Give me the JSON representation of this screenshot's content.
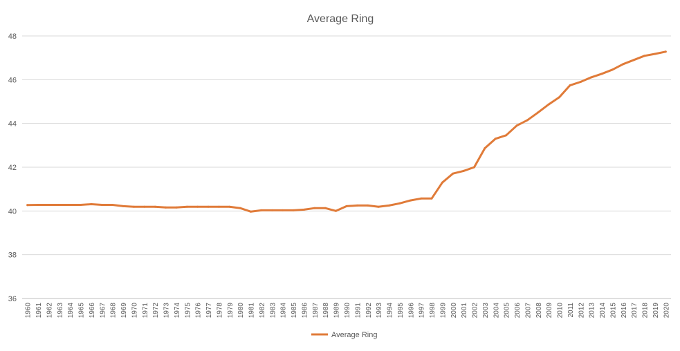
{
  "chart_data": {
    "type": "line",
    "title": "Average Ring",
    "xlabel": "",
    "ylabel": "",
    "ylim": [
      36,
      48
    ],
    "yticks": [
      36,
      38,
      40,
      42,
      44,
      46,
      48
    ],
    "grid": true,
    "legend_position": "bottom",
    "line_color": "#E07B39",
    "gridline_color": "#D9D9D9",
    "text_color": "#595959",
    "categories": [
      "1960",
      "1961",
      "1962",
      "1963",
      "1964",
      "1965",
      "1966",
      "1967",
      "1968",
      "1969",
      "1970",
      "1971",
      "1972",
      "1973",
      "1974",
      "1975",
      "1976",
      "1977",
      "1978",
      "1979",
      "1980",
      "1981",
      "1982",
      "1983",
      "1984",
      "1985",
      "1986",
      "1987",
      "1988",
      "1989",
      "1990",
      "1991",
      "1992",
      "1993",
      "1994",
      "1995",
      "1996",
      "1997",
      "1998",
      "1999",
      "2000",
      "2001",
      "2002",
      "2003",
      "2004",
      "2005",
      "2006",
      "2007",
      "2008",
      "2009",
      "2010",
      "2011",
      "2012",
      "2013",
      "2014",
      "2015",
      "2016",
      "2017",
      "2018",
      "2019",
      "2020"
    ],
    "series": [
      {
        "name": "Average Ring",
        "values": [
          40.27,
          40.28,
          40.28,
          40.28,
          40.28,
          40.28,
          40.31,
          40.28,
          40.28,
          40.22,
          40.19,
          40.19,
          40.19,
          40.16,
          40.16,
          40.19,
          40.19,
          40.19,
          40.19,
          40.19,
          40.13,
          39.97,
          40.03,
          40.03,
          40.03,
          40.03,
          40.06,
          40.13,
          40.13,
          40.0,
          40.22,
          40.25,
          40.25,
          40.19,
          40.25,
          40.35,
          40.48,
          40.57,
          40.57,
          41.3,
          41.71,
          41.83,
          42.0,
          42.87,
          43.3,
          43.46,
          43.9,
          44.15,
          44.5,
          44.87,
          45.2,
          45.74,
          45.9,
          46.11,
          46.27,
          46.46,
          46.71,
          46.9,
          47.09,
          47.18,
          47.28
        ]
      }
    ]
  }
}
